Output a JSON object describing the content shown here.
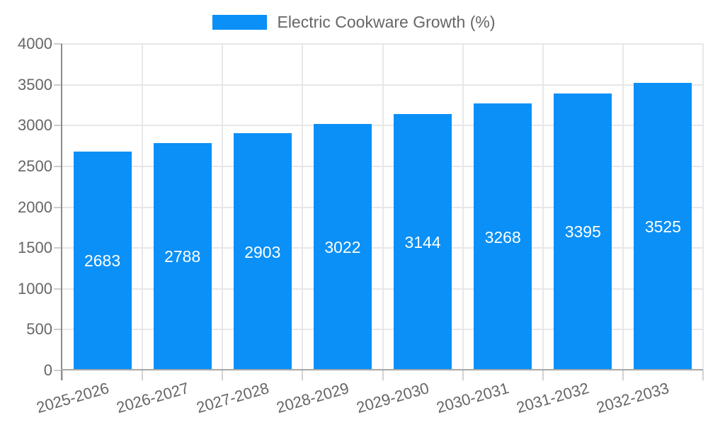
{
  "chart_data": {
    "type": "bar",
    "title": "",
    "legend": {
      "label": "Electric Cookware Growth (%)",
      "position": "top"
    },
    "categories": [
      "2025-2026",
      "2026-2027",
      "2027-2028",
      "2028-2029",
      "2029-2030",
      "2030-2031",
      "2031-2032",
      "2032-2033"
    ],
    "series": [
      {
        "name": "Electric Cookware Growth (%)",
        "values": [
          2683,
          2788,
          2903,
          3022,
          3144,
          3268,
          3395,
          3525
        ]
      }
    ],
    "value_labels_shown": true,
    "xlabel": "",
    "ylabel": "",
    "ylim": [
      0,
      4000
    ],
    "yticks": [
      0,
      500,
      1000,
      1500,
      2000,
      2500,
      3000,
      3500,
      4000
    ],
    "grid": true,
    "colors": {
      "bar": "#0a90f6",
      "value_label": "#ffffff",
      "axis_text": "#666666",
      "gridline": "#e7e7e7"
    }
  }
}
